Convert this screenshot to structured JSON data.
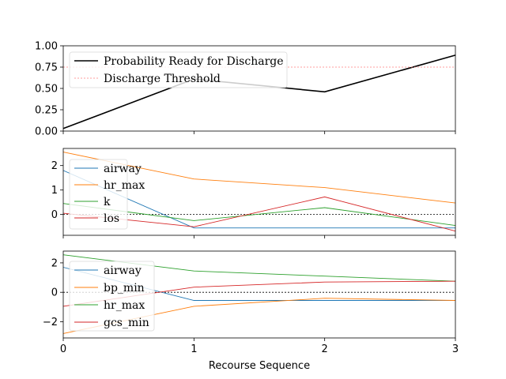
{
  "figure": {
    "xlabel": "Recourse Sequence"
  },
  "chart_data": [
    {
      "type": "line",
      "x": [
        0,
        1,
        2,
        3
      ],
      "xlim": [
        0,
        3
      ],
      "ylim": [
        0,
        1
      ],
      "yticks": [
        0.0,
        0.25,
        0.5,
        0.75,
        1.0
      ],
      "ytick_labels": [
        "0.00",
        "0.25",
        "0.50",
        "0.75",
        "1.00"
      ],
      "legend_position": "upper-left",
      "series": [
        {
          "name": "Probability Ready for Discharge",
          "values": [
            0.03,
            0.61,
            0.46,
            0.89
          ],
          "color": "#000000",
          "style": "solid"
        },
        {
          "name": "Discharge Threshold",
          "values": [
            0.75,
            0.75,
            0.75,
            0.75
          ],
          "color": "#ff7f7f",
          "style": "dotted"
        }
      ]
    },
    {
      "type": "line",
      "x": [
        0,
        1,
        2,
        3
      ],
      "xlim": [
        0,
        3
      ],
      "ylim": [
        -0.85,
        2.7
      ],
      "yticks": [
        0,
        1,
        2
      ],
      "ytick_labels": [
        "0",
        "1",
        "2"
      ],
      "zero_line": true,
      "legend_position": "upper-left",
      "series": [
        {
          "name": "airway",
          "values": [
            1.8,
            -0.55,
            -0.55,
            -0.55
          ],
          "color": "#1f77b4"
        },
        {
          "name": "hr_max",
          "values": [
            2.55,
            1.45,
            1.1,
            0.47
          ],
          "color": "#ff7f0e"
        },
        {
          "name": "k",
          "values": [
            0.45,
            -0.25,
            0.28,
            -0.45
          ],
          "color": "#2ca02c"
        },
        {
          "name": "los",
          "values": [
            0.05,
            -0.5,
            0.72,
            -0.68
          ],
          "color": "#d62728"
        }
      ]
    },
    {
      "type": "line",
      "x": [
        0,
        1,
        2,
        3
      ],
      "xlim": [
        0,
        3
      ],
      "ylim": [
        -3.1,
        2.8
      ],
      "yticks": [
        -2,
        0,
        2
      ],
      "ytick_labels": [
        "−2",
        "0",
        "2"
      ],
      "xticks": [
        0,
        1,
        2,
        3
      ],
      "xtick_labels": [
        "0",
        "1",
        "2",
        "3"
      ],
      "zero_line": true,
      "legend_position": "upper-left",
      "series": [
        {
          "name": "airway",
          "values": [
            1.7,
            -0.55,
            -0.55,
            -0.55
          ],
          "color": "#1f77b4"
        },
        {
          "name": "bp_min",
          "values": [
            -2.8,
            -0.95,
            -0.4,
            -0.55
          ],
          "color": "#ff7f0e"
        },
        {
          "name": "hr_max",
          "values": [
            2.55,
            1.45,
            1.1,
            0.75
          ],
          "color": "#2ca02c"
        },
        {
          "name": "gcs_min",
          "values": [
            -0.95,
            0.35,
            0.7,
            0.75
          ],
          "color": "#d62728"
        }
      ]
    }
  ]
}
